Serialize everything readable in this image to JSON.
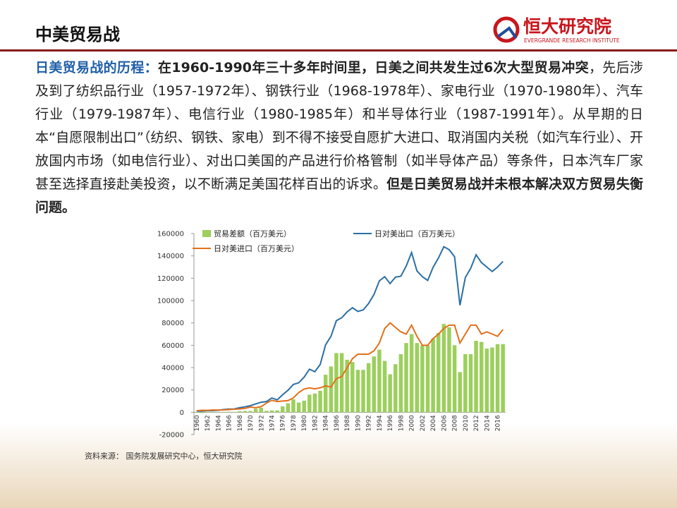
{
  "header": {
    "title": "中美贸易战",
    "logo_name": "恒大研究院",
    "logo_subtitle": "EVERGRANDE RESEARCH INSTITUTE"
  },
  "paragraph": [
    {
      "style": "blue-bold",
      "text": "日美贸易战的历程："
    },
    {
      "style": "bold",
      "text": "在1960-1990年三十多年时间里，日美之间共发生过6次大型贸易冲突"
    },
    {
      "style": "normal",
      "text": "，先后涉及到了纺织品行业（1957-1972年）、钢铁行业（1968-1978年）、家电行业（1970-1980年）、汽车行业（1979-1987年）、电信行业（1980-1985年）和半导体行业（1987-1991年）。从早期的日本“自愿限制出口”（纺织、钢铁、家电）到不得不接受自愿扩大进口、取消国内关税（如汽车行业）、开放国内市场（如电信行业）、对出口美国的产品进行价格管制（如半导体产品）等条件，日本汽车厂家甚至选择直接赴美投资，以不断满足美国花样百出的诉求。"
    },
    {
      "style": "bold",
      "text": "但是日美贸易战并未根本解决双方贸易失衡问题。"
    }
  ],
  "chart_data": {
    "type": "combo",
    "categories": [
      "1960",
      null,
      "1962",
      null,
      "1964",
      null,
      "1966",
      null,
      "1968",
      null,
      "1970",
      null,
      "1972",
      null,
      "1974",
      null,
      "1976",
      null,
      "1978",
      null,
      "1980",
      null,
      "1982",
      null,
      "1984",
      null,
      "1986",
      null,
      "1988",
      null,
      "1990",
      null,
      "1992",
      null,
      "1994",
      null,
      "1996",
      null,
      "1998",
      null,
      "2000",
      null,
      "2002",
      null,
      "2004",
      null,
      "2006",
      null,
      "2008",
      null,
      "2010",
      null,
      "2012",
      null,
      "2014",
      null,
      "2016",
      null
    ],
    "series": [
      {
        "name": "贸易差额（百万美元）",
        "type": "bar",
        "color": "#9ccf5c",
        "values": [
          -400,
          -700,
          -300,
          -500,
          -200,
          300,
          500,
          300,
          1000,
          1100,
          1200,
          3200,
          4000,
          1300,
          1700,
          1700,
          5300,
          8000,
          11600,
          8700,
          10400,
          15800,
          16800,
          19300,
          33600,
          41000,
          53000,
          53000,
          47000,
          45000,
          38000,
          38000,
          44000,
          50000,
          56000,
          46000,
          34000,
          43000,
          52000,
          62000,
          70000,
          62000,
          60000,
          60000,
          66000,
          71000,
          79000,
          76000,
          60000,
          36000,
          52000,
          52000,
          64000,
          63000,
          57000,
          58000,
          61000,
          61000
        ]
      },
      {
        "name": "日对美出口（百万美元）",
        "type": "line",
        "color": "#2a6fa6",
        "values": [
          1000,
          1100,
          1400,
          1500,
          1800,
          2400,
          2900,
          3000,
          4100,
          4900,
          5900,
          7500,
          9000,
          9600,
          12800,
          11100,
          15700,
          19700,
          24900,
          26400,
          31400,
          38600,
          36300,
          42800,
          60400,
          68000,
          82000,
          84600,
          89800,
          93600,
          90300,
          91600,
          97400,
          105400,
          117600,
          121400,
          115200,
          121000,
          121800,
          130900,
          143000,
          126500,
          121400,
          118000,
          129800,
          138100,
          148200,
          145500,
          139200,
          95800,
          120600,
          128900,
          141000,
          134000,
          130000,
          126000,
          130000,
          135000
        ]
      },
      {
        "name": "日对美进口（百万美元）",
        "type": "line",
        "color": "#e3701a",
        "values": [
          1400,
          1800,
          1700,
          2000,
          2000,
          2100,
          2400,
          2700,
          3000,
          3500,
          4700,
          4100,
          5000,
          8300,
          10700,
          9600,
          10100,
          10500,
          12900,
          17600,
          20800,
          21800,
          21000,
          21900,
          23600,
          22600,
          30000,
          32000,
          40000,
          48000,
          52000,
          52000,
          52000,
          55000,
          62000,
          75000,
          80000,
          76000,
          72000,
          70000,
          78000,
          68000,
          60000,
          60000,
          66000,
          70000,
          75000,
          78000,
          78000,
          62000,
          70000,
          78000,
          78000,
          70000,
          72000,
          70000,
          68000,
          74000
        ]
      }
    ],
    "ylim": [
      -20000,
      160000
    ],
    "yticks": [
      -20000,
      0,
      20000,
      40000,
      60000,
      80000,
      100000,
      120000,
      140000,
      160000
    ]
  },
  "source": "资料来源： 国务院发展研究中心，恒大研究院"
}
